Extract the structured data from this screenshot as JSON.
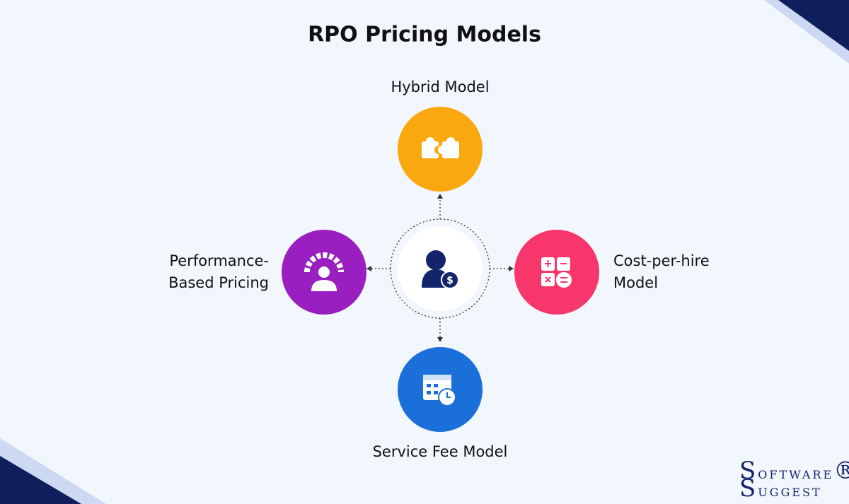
{
  "header": {
    "title": "RPO Pricing Models"
  },
  "nodes": [
    {
      "lines": [
        "Hybrid Model"
      ]
    },
    {
      "lines": [
        "Performance-",
        "Based Pricing"
      ]
    },
    {
      "lines": [
        "Cost-per-hire",
        "Model"
      ]
    },
    {
      "lines": [
        "Service Fee Model"
      ]
    }
  ],
  "logo": {
    "word1": "SOFTWARE",
    "word2": "SUGGEST",
    "mark": "®"
  }
}
